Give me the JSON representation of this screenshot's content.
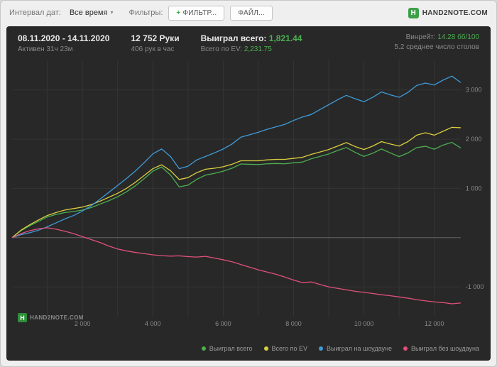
{
  "toolbar": {
    "date_interval_label": "Интервал дат:",
    "date_interval_value": "Все время",
    "filters_label": "Фильтры:",
    "plus": "+",
    "add_filter_label": "ФИЛЬТР...",
    "file_label": "ФАЙЛ...",
    "brand": "HAND2NOTE.COM",
    "brand_initial": "H"
  },
  "header": {
    "date_range": "08.11.2020 - 14.11.2020",
    "active_time": "Активен 31ч 23м",
    "hands_count": "12 752 Руки",
    "hands_per_hour": "406 рук в час",
    "won_total_label": "Выиграл всего:",
    "won_total_value": "1,821.44",
    "ev_total_label": "Всего по EV:",
    "ev_total_value": "2,231.75",
    "winrate_label": "Винрейт:",
    "winrate_value": "14.28 бб/100",
    "avg_tables": "5.2 среднее число столов"
  },
  "watermark": {
    "initial": "H",
    "text": "HAND2NOTE.COM"
  },
  "colors": {
    "accent_green": "#4caf50",
    "panel_bg": "#282828",
    "grid": "#353535",
    "zero_line": "#646464",
    "tick_text": "#8a8a8a"
  },
  "chart_data": {
    "type": "line",
    "x_axis": "hands",
    "x_max": 12750,
    "x_step": 250,
    "x_grid_step": 1000,
    "y_range": [
      -1600,
      3600
    ],
    "x_ticks": [
      {
        "value": 2000,
        "label": "2 000"
      },
      {
        "value": 4000,
        "label": "4 000"
      },
      {
        "value": 6000,
        "label": "6 000"
      },
      {
        "value": 8000,
        "label": "8 000"
      },
      {
        "value": 10000,
        "label": "10 000"
      },
      {
        "value": 12000,
        "label": "12 000"
      }
    ],
    "y_ticks": [
      {
        "value": 3000,
        "label": "3 000"
      },
      {
        "value": 2000,
        "label": "2 000"
      },
      {
        "value": 1000,
        "label": "1 000"
      },
      {
        "value": -1000,
        "label": "-1 000"
      }
    ],
    "series": [
      {
        "key": "won-total",
        "name": "Выиграл всего",
        "color": "#4caf50",
        "values": [
          0,
          140,
          240,
          330,
          420,
          470,
          510,
          530,
          560,
          610,
          680,
          750,
          830,
          930,
          1050,
          1195,
          1350,
          1435,
          1275,
          1030,
          1065,
          1185,
          1270,
          1305,
          1350,
          1410,
          1495,
          1490,
          1485,
          1500,
          1505,
          1500,
          1520,
          1535,
          1600,
          1650,
          1700,
          1770,
          1830,
          1730,
          1650,
          1715,
          1800,
          1720,
          1645,
          1720,
          1830,
          1855,
          1795,
          1880,
          1935,
          1821
        ]
      },
      {
        "key": "ev-total",
        "name": "Всего по EV",
        "color": "#d9ce3f",
        "values": [
          0,
          150,
          260,
          360,
          450,
          510,
          560,
          590,
          620,
          670,
          740,
          820,
          900,
          1000,
          1120,
          1260,
          1400,
          1480,
          1360,
          1180,
          1220,
          1320,
          1390,
          1410,
          1440,
          1490,
          1560,
          1560,
          1560,
          1580,
          1590,
          1590,
          1610,
          1630,
          1690,
          1740,
          1790,
          1860,
          1930,
          1850,
          1790,
          1860,
          1950,
          1900,
          1860,
          1950,
          2080,
          2130,
          2080,
          2160,
          2240,
          2232
        ]
      },
      {
        "key": "won-showdown",
        "name": "Выиграл на шоудауне",
        "color": "#3f9bd8",
        "values": [
          0,
          60,
          100,
          150,
          220,
          300,
          380,
          450,
          540,
          650,
          780,
          920,
          1060,
          1200,
          1350,
          1520,
          1700,
          1800,
          1650,
          1400,
          1450,
          1580,
          1650,
          1720,
          1800,
          1900,
          2040,
          2090,
          2140,
          2200,
          2250,
          2300,
          2380,
          2450,
          2500,
          2600,
          2700,
          2800,
          2890,
          2820,
          2760,
          2850,
          2960,
          2900,
          2850,
          2950,
          3090,
          3140,
          3100,
          3200,
          3280,
          3150
        ]
      },
      {
        "key": "won-non-showdown",
        "name": "Выиграл без шоудауна",
        "color": "#e0507a",
        "values": [
          0,
          80,
          140,
          180,
          200,
          170,
          130,
          80,
          20,
          -40,
          -100,
          -170,
          -230,
          -270,
          -300,
          -325,
          -350,
          -365,
          -375,
          -370,
          -385,
          -395,
          -380,
          -415,
          -450,
          -490,
          -545,
          -600,
          -655,
          -700,
          -745,
          -800,
          -860,
          -915,
          -900,
          -950,
          -1000,
          -1030,
          -1060,
          -1090,
          -1110,
          -1135,
          -1160,
          -1180,
          -1205,
          -1230,
          -1260,
          -1285,
          -1305,
          -1320,
          -1345,
          -1329
        ]
      }
    ]
  }
}
